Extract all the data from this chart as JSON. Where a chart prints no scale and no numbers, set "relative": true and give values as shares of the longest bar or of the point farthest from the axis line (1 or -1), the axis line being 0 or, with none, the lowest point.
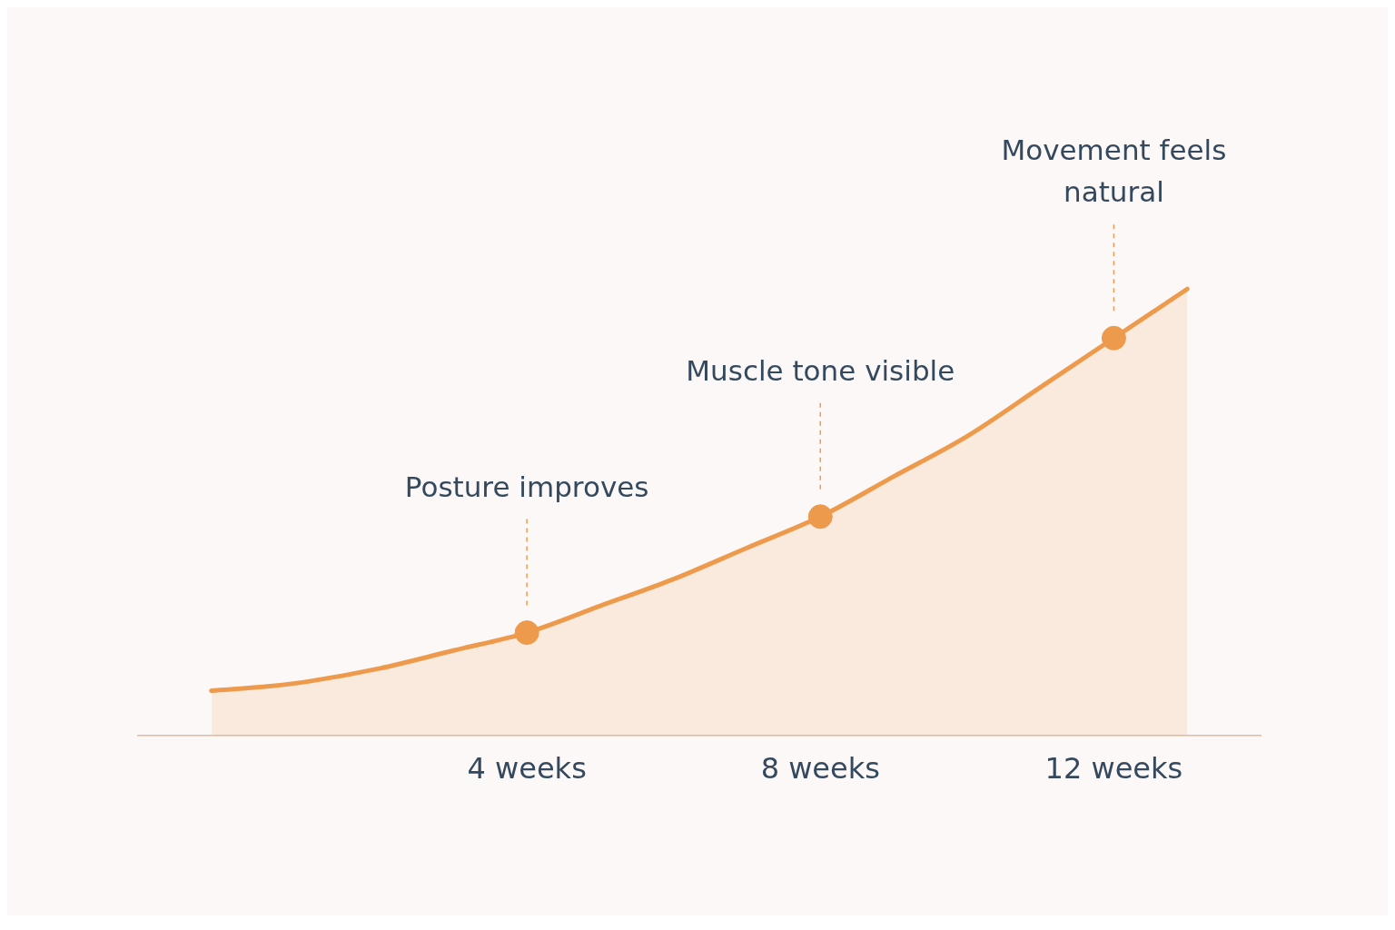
{
  "chart_data": {
    "type": "line",
    "relative": true,
    "xlim": [
      -1.3,
      14
    ],
    "xticks": [
      {
        "value": 4,
        "label": "4 weeks"
      },
      {
        "value": 8,
        "label": "8 weeks"
      },
      {
        "value": 12,
        "label": "12 weeks"
      }
    ],
    "tick_labels": "x",
    "series": [
      {
        "type": "area",
        "color": "#ee9a4d",
        "x": [
          -0.3,
          0.5,
          1,
          2,
          3,
          4,
          5,
          6,
          7,
          8,
          9,
          10,
          11,
          12,
          13
        ],
        "values": [
          0.1,
          0.11,
          0.12,
          0.15,
          0.19,
          0.23,
          0.29,
          0.35,
          0.42,
          0.49,
          0.58,
          0.67,
          0.78,
          0.89,
          1
        ],
        "marker": "none"
      },
      {
        "type": "scatter",
        "color": "#ee9a4d",
        "x": [
          4,
          8,
          12
        ],
        "values": [
          0.23,
          0.49,
          0.89
        ],
        "marker": "circle"
      }
    ],
    "annotations": [
      "Posture improves",
      "Muscle tone visible",
      "Movement feels natural"
    ],
    "grid": false,
    "legend": false
  }
}
